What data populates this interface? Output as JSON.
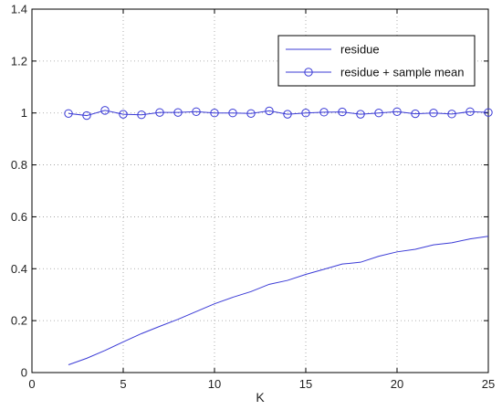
{
  "chart_data": {
    "type": "line",
    "title": "",
    "xlabel": "K",
    "ylabel": "",
    "xlim": [
      0,
      25
    ],
    "ylim": [
      0,
      1.4
    ],
    "xticks": [
      0,
      5,
      10,
      15,
      20,
      25
    ],
    "yticks": [
      0,
      0.2,
      0.4,
      0.6,
      0.8,
      1,
      1.2,
      1.4
    ],
    "xtick_labels": [
      "0",
      "5",
      "10",
      "15",
      "20",
      "25"
    ],
    "ytick_labels": [
      "0",
      "0.2",
      "0.4",
      "0.6",
      "0.8",
      "1",
      "1.2",
      "1.4"
    ],
    "grid": true,
    "legend_position": "top-right",
    "x": [
      2,
      3,
      4,
      5,
      6,
      7,
      8,
      9,
      10,
      11,
      12,
      13,
      14,
      15,
      16,
      17,
      18,
      19,
      20,
      21,
      22,
      23,
      24,
      25
    ],
    "series": [
      {
        "name": "residue",
        "color": "#3b3bd6",
        "marker": "none",
        "values": [
          0.03,
          0.055,
          0.085,
          0.118,
          0.15,
          0.178,
          0.205,
          0.235,
          0.265,
          0.29,
          0.312,
          0.34,
          0.355,
          0.378,
          0.398,
          0.418,
          0.425,
          0.448,
          0.465,
          0.475,
          0.492,
          0.5,
          0.515,
          0.525
        ]
      },
      {
        "name": "residue + sample mean",
        "color": "#3b3bd6",
        "marker": "circle",
        "values": [
          0.998,
          0.99,
          1.01,
          0.995,
          0.993,
          1.002,
          1.002,
          1.005,
          1.0,
          1.0,
          0.998,
          1.008,
          0.995,
          1.0,
          1.003,
          1.004,
          0.995,
          1.0,
          1.005,
          0.997,
          1.0,
          0.996,
          1.005,
          1.002
        ]
      }
    ]
  }
}
